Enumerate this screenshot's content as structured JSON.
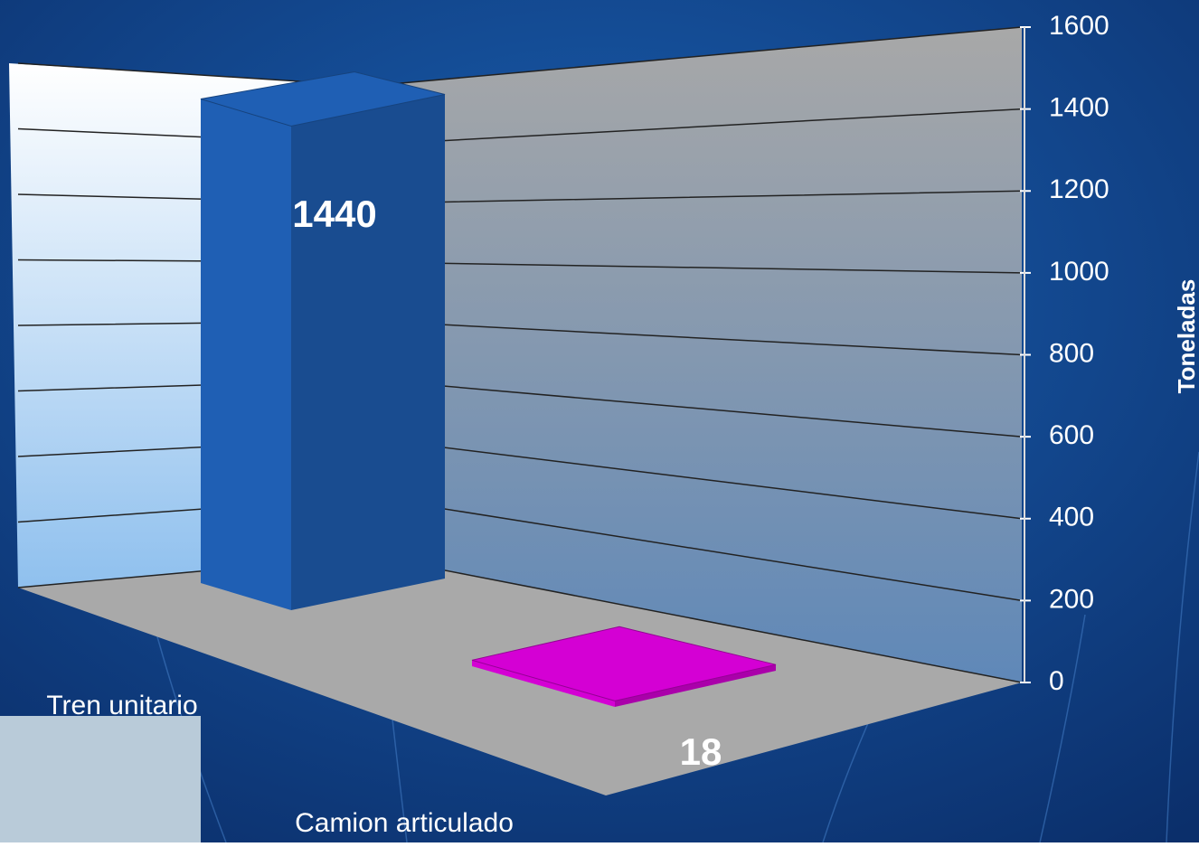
{
  "chart_data": {
    "type": "bar3d",
    "categories": [
      "Tren unitario",
      "Camion articulado"
    ],
    "values": [
      1440,
      18
    ],
    "colors": [
      "#1f5fb4",
      "#d400d4"
    ],
    "y_axis_label": "Toneladas",
    "ylim": [
      0,
      1600
    ],
    "yticks": [
      0,
      200,
      400,
      600,
      800,
      1000,
      1200,
      1400,
      1600
    ],
    "grid": true
  }
}
